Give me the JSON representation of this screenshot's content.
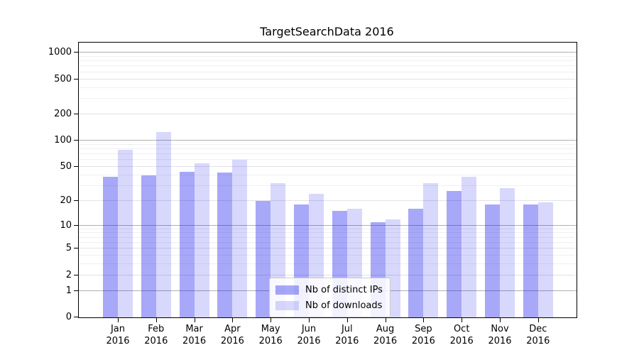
{
  "title": "TargetSearchData 2016",
  "chart_data": {
    "type": "bar",
    "title": "TargetSearchData 2016",
    "categories": [
      "Jan",
      "Feb",
      "Mar",
      "Apr",
      "May",
      "Jun",
      "Jul",
      "Aug",
      "Sep",
      "Oct",
      "Nov",
      "Dec"
    ],
    "category_year": "2016",
    "series": [
      {
        "name": "Nb of distinct IPs",
        "color": "rgba(15,15,235,0.36)",
        "values": [
          38,
          40,
          44,
          43,
          20,
          18,
          15,
          11,
          16,
          26,
          18,
          18
        ]
      },
      {
        "name": "Nb of downloads",
        "color": "rgba(15,15,235,0.16)",
        "values": [
          78,
          125,
          55,
          60,
          32,
          24,
          16,
          12,
          32,
          38,
          28,
          19
        ]
      }
    ],
    "y_scale": "log1p",
    "y_ticks": [
      0,
      1,
      2,
      5,
      10,
      20,
      50,
      100,
      200,
      500,
      1000
    ],
    "ylim": [
      0,
      1300
    ],
    "xlabel": "",
    "ylabel": "",
    "grid": true,
    "legend_position": "lower-center"
  },
  "colors": {
    "bar_dark": "rgba(15,15,235,0.36)",
    "bar_light": "rgba(15,15,235,0.16)",
    "grid_major": "#b0b0b0",
    "grid_mid": "#e2e2e8",
    "grid_minor": "#f0f0f4",
    "axis": "#000000",
    "background": "#ffffff"
  }
}
